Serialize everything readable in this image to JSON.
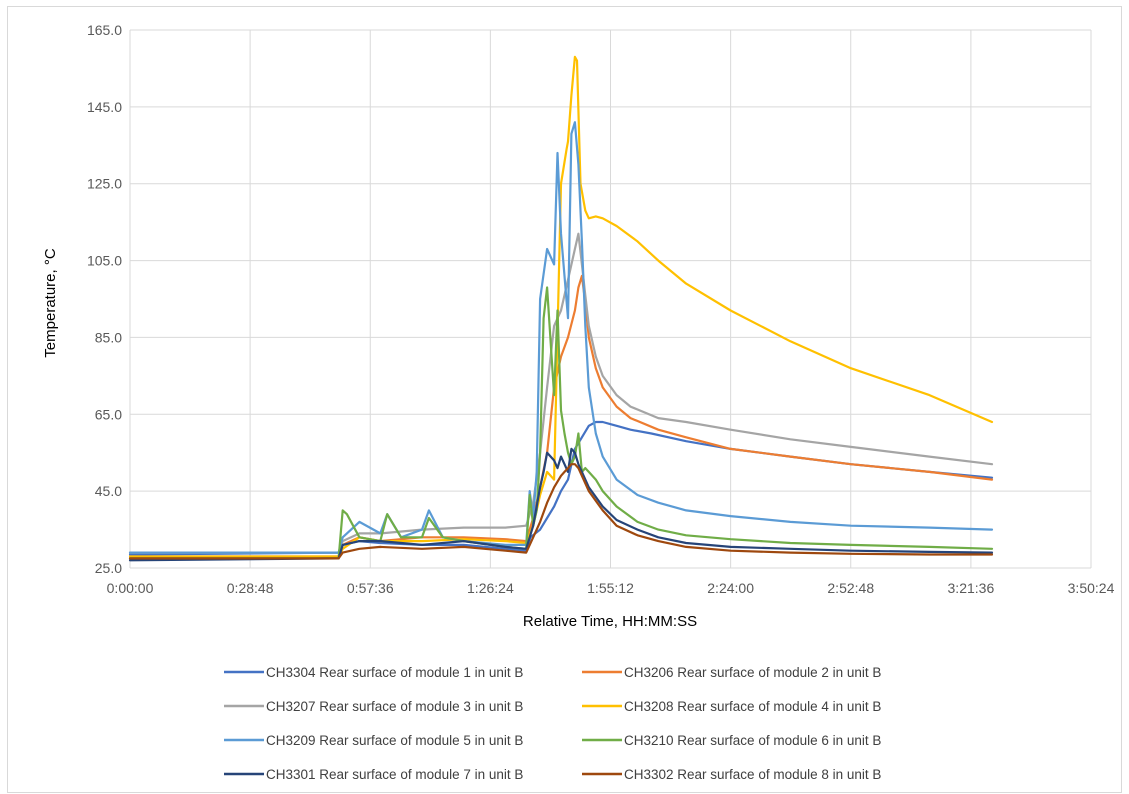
{
  "chart_data": {
    "type": "line",
    "title": "",
    "xlabel": "Relative Time, HH:MM:SS",
    "ylabel": "Temperature, °C",
    "xlim": [
      0,
      830
    ],
    "ylim": [
      25,
      165
    ],
    "x_unit": "seconds",
    "x_ticks": [
      0,
      1728,
      3456,
      5184,
      6912,
      8640,
      10368,
      12096,
      13824
    ],
    "x_tick_labels": [
      "0:00:00",
      "0:28:48",
      "0:57:36",
      "1:26:24",
      "1:55:12",
      "2:24:00",
      "2:52:48",
      "3:21:36",
      "3:50:24"
    ],
    "y_ticks": [
      25,
      45,
      65,
      85,
      105,
      125,
      145,
      165
    ],
    "y_tick_labels": [
      "25.0",
      "45.0",
      "65.0",
      "85.0",
      "105.0",
      "125.0",
      "145.0",
      "165.0"
    ],
    "grid": true,
    "legend_position": "bottom",
    "series": [
      {
        "name": "CH3304 Rear surface of module 1 in unit B",
        "color": "#4472C4",
        "x": [
          0,
          3000,
          3060,
          3300,
          3600,
          4200,
          4800,
          5400,
          5700,
          5760,
          5900,
          6000,
          6100,
          6200,
          6300,
          6400,
          6500,
          6600,
          6700,
          6800,
          6900,
          7000,
          7200,
          7500,
          8000,
          8640,
          9500,
          10368,
          11500,
          12400
        ],
        "y": [
          28.5,
          29,
          31,
          32,
          31.5,
          31,
          31,
          30,
          29.5,
          33,
          35,
          38,
          41,
          45,
          48,
          56,
          59,
          62,
          63,
          63,
          62.5,
          62,
          61,
          60,
          58,
          56,
          54,
          52,
          50,
          48.5
        ]
      },
      {
        "name": "CH3206 Rear surface of module 2 in unit B",
        "color": "#ED7D31",
        "x": [
          0,
          3000,
          3060,
          3300,
          3600,
          4200,
          4800,
          5400,
          5700,
          5800,
          5900,
          6000,
          6100,
          6200,
          6300,
          6400,
          6450,
          6500,
          6550,
          6600,
          6700,
          6800,
          7000,
          7200,
          7600,
          8000,
          8640,
          9500,
          10368,
          11500,
          12400
        ],
        "y": [
          28,
          28,
          31,
          33,
          32,
          33,
          33,
          32.5,
          32,
          38,
          46,
          55,
          72,
          80,
          85,
          92,
          98,
          101,
          94,
          85,
          77,
          72,
          67,
          64,
          61,
          59,
          56,
          54,
          52,
          50,
          48
        ]
      },
      {
        "name": "CH3207 Rear surface of module 3 in unit B",
        "color": "#A5A5A5",
        "x": [
          0,
          3000,
          3060,
          3300,
          3600,
          4200,
          4800,
          5400,
          5700,
          5800,
          5900,
          6000,
          6100,
          6200,
          6300,
          6400,
          6450,
          6500,
          6550,
          6600,
          6700,
          6800,
          7000,
          7200,
          7600,
          8000,
          8640,
          9500,
          10368,
          11500,
          12400
        ],
        "y": [
          29,
          29,
          32,
          34,
          34,
          35,
          35.5,
          35.5,
          36,
          42,
          55,
          72,
          88,
          92,
          100,
          108,
          112,
          104,
          96,
          88,
          80,
          75,
          70,
          67,
          64,
          63,
          61,
          58.5,
          56.5,
          54,
          52
        ]
      },
      {
        "name": "CH3208 Rear surface of module 4 in unit B",
        "color": "#FFC000",
        "x": [
          0,
          3000,
          3060,
          3300,
          3600,
          4200,
          4800,
          5400,
          5700,
          5800,
          5900,
          6000,
          6100,
          6200,
          6280,
          6300,
          6350,
          6400,
          6430,
          6480,
          6550,
          6600,
          6700,
          6800,
          7000,
          7300,
          7600,
          8000,
          8640,
          9500,
          10368,
          11500,
          12400
        ],
        "y": [
          28,
          28,
          30,
          33,
          32,
          32,
          32.5,
          32,
          31.5,
          36,
          44,
          50,
          48,
          125,
          134,
          136,
          148,
          158,
          157,
          125,
          118,
          116,
          116.5,
          116,
          114,
          110,
          105,
          99,
          92,
          84,
          77,
          70,
          63
        ]
      },
      {
        "name": "CH3209 Rear surface of module 5 in unit B",
        "color": "#5B9BD5",
        "x": [
          0,
          3000,
          3060,
          3300,
          3600,
          3700,
          3900,
          4200,
          4300,
          4500,
          4800,
          5400,
          5700,
          5750,
          5800,
          5850,
          5900,
          6000,
          6100,
          6150,
          6200,
          6300,
          6350,
          6400,
          6450,
          6500,
          6550,
          6600,
          6700,
          6800,
          7000,
          7300,
          7600,
          8000,
          8640,
          9500,
          10368,
          11500,
          12400
        ],
        "y": [
          29,
          29,
          33,
          37,
          34,
          39,
          33,
          35,
          40,
          33,
          32,
          31,
          31,
          45,
          38,
          50,
          95,
          108,
          104,
          133,
          112,
          90,
          138,
          141,
          130,
          110,
          88,
          72,
          60,
          54,
          48,
          44,
          42,
          40,
          38.5,
          37,
          36,
          35.5,
          35
        ]
      },
      {
        "name": "CH3210 Rear surface of module 6 in unit B",
        "color": "#70AD47",
        "x": [
          0,
          3000,
          3060,
          3120,
          3300,
          3600,
          3700,
          3900,
          4200,
          4300,
          4500,
          4800,
          5400,
          5700,
          5750,
          5800,
          5850,
          5900,
          5950,
          6000,
          6050,
          6100,
          6150,
          6200,
          6250,
          6300,
          6350,
          6400,
          6450,
          6500,
          6550,
          6600,
          6700,
          6800,
          7000,
          7300,
          7600,
          8000,
          8640,
          9500,
          10368,
          11500,
          12400
        ],
        "y": [
          27.5,
          27.5,
          40,
          39,
          33,
          32,
          39,
          33,
          33,
          38,
          33,
          32,
          30.5,
          30,
          44,
          36,
          40,
          55,
          90,
          98,
          84,
          70,
          92,
          66,
          60,
          55,
          52,
          54,
          60,
          50,
          51,
          50,
          48,
          45,
          41,
          37,
          35,
          33.5,
          32.5,
          31.5,
          31,
          30.5,
          30
        ]
      },
      {
        "name": "CH3301 Rear surface of module 7 in unit B",
        "color": "#264478",
        "x": [
          0,
          3000,
          3060,
          3300,
          3600,
          4200,
          4800,
          5400,
          5700,
          5800,
          5900,
          5950,
          6000,
          6100,
          6150,
          6200,
          6250,
          6300,
          6350,
          6400,
          6450,
          6500,
          6600,
          6800,
          7000,
          7300,
          7600,
          8000,
          8640,
          9500,
          10368,
          11500,
          12400
        ],
        "y": [
          27,
          27.5,
          31,
          32,
          32,
          31,
          32,
          30.5,
          30,
          36,
          46,
          50,
          55,
          53,
          51,
          54,
          52,
          50,
          56,
          55,
          52,
          50,
          46,
          41,
          37.5,
          35,
          33,
          31.5,
          30.5,
          30,
          29.5,
          29.2,
          29
        ]
      },
      {
        "name": "CH3302 Rear surface of module 8 in unit B",
        "color": "#9E480E",
        "x": [
          0,
          3000,
          3060,
          3300,
          3600,
          4200,
          4800,
          5400,
          5700,
          5800,
          5900,
          6000,
          6100,
          6200,
          6250,
          6300,
          6350,
          6400,
          6450,
          6500,
          6600,
          6800,
          7000,
          7300,
          7600,
          8000,
          8640,
          9500,
          10368,
          11500,
          12400
        ],
        "y": [
          27.5,
          27.5,
          29,
          30,
          30.5,
          30,
          30.5,
          29.5,
          29,
          33,
          37,
          42,
          46,
          49,
          50,
          51,
          52,
          52,
          51,
          49,
          45,
          40,
          36,
          33.5,
          32,
          30.5,
          29.5,
          29,
          28.7,
          28.5,
          28.5
        ]
      }
    ]
  }
}
